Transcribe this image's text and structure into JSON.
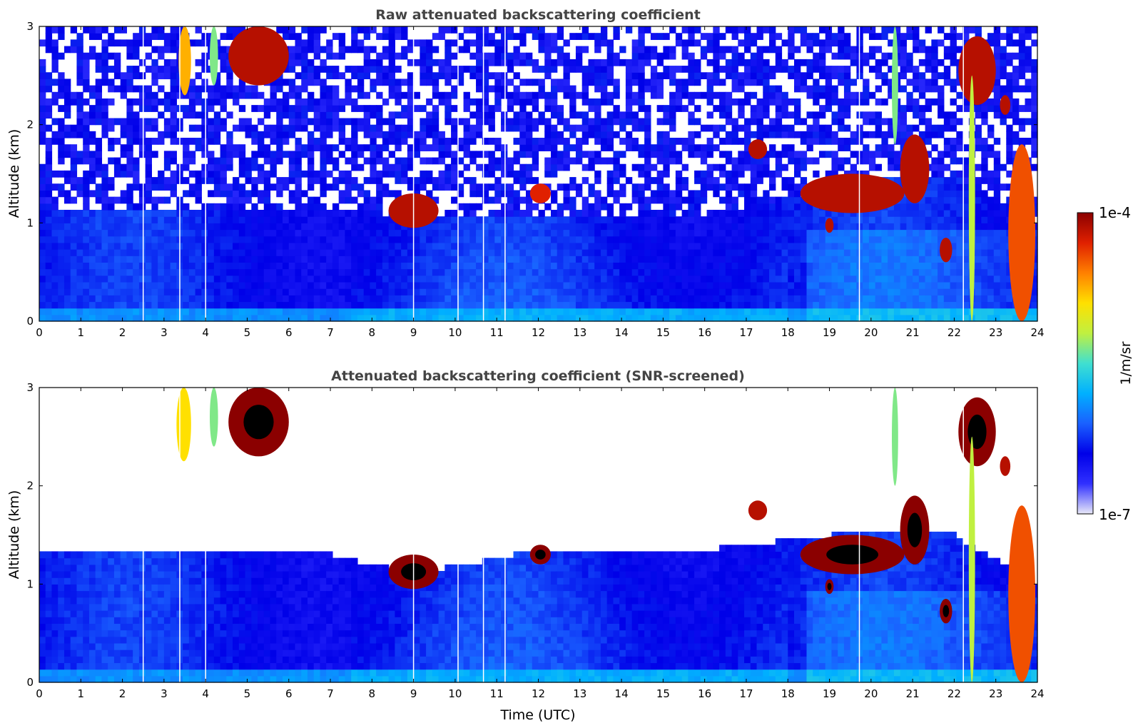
{
  "colors": {
    "bg_plot": "#ffffff",
    "frame": "#000000",
    "title_text": "#444444",
    "colormap_stops": [
      "#e8e8f8",
      "#3030ff",
      "#0000e8",
      "#1a60ff",
      "#00b0ff",
      "#40e0d0",
      "#c0f040",
      "#ffe000",
      "#ff8000",
      "#e02000",
      "#8b0000"
    ],
    "screened_cloud_core": "#000000"
  },
  "colorbar": {
    "max_label": "1e-4",
    "min_label": "1e-7",
    "unit_label": "1/m/sr",
    "scale": "log"
  },
  "chart_data": [
    {
      "type": "heatmap",
      "title": "Raw attenuated backscattering coefficient",
      "xlabel": "",
      "ylabel": "Altitude (km)",
      "xlim": [
        0,
        24
      ],
      "ylim": [
        0,
        3
      ],
      "xticks": [
        "0",
        "1",
        "2",
        "3",
        "4",
        "5",
        "6",
        "7",
        "8",
        "9",
        "10",
        "11",
        "12",
        "13",
        "14",
        "15",
        "16",
        "17",
        "18",
        "19",
        "20",
        "21",
        "22",
        "23",
        "24"
      ],
      "yticks": [
        "0",
        "1",
        "2",
        "3"
      ],
      "grid": false,
      "noise_above_boundary_layer": true,
      "boundary_layer_top_km": [
        [
          0,
          1.15
        ],
        [
          4,
          1.15
        ],
        [
          8,
          1.1
        ],
        [
          12,
          1.05
        ],
        [
          16,
          1.1
        ],
        [
          18,
          1.25
        ],
        [
          20,
          1.45
        ],
        [
          22,
          1.5
        ],
        [
          24,
          1.0
        ]
      ],
      "data_gaps_utc": [
        2.5,
        3.38,
        4.0,
        9.0,
        10.07,
        10.68,
        11.2,
        19.72,
        22.22
      ],
      "cloud_features": [
        {
          "t0": 3.35,
          "t1": 3.65,
          "z0": 2.3,
          "z1": 3.0,
          "intensity": 0.75
        },
        {
          "t0": 4.55,
          "t1": 6.0,
          "z0": 2.4,
          "z1": 3.0,
          "intensity": 0.95
        },
        {
          "t0": 4.1,
          "t1": 4.3,
          "z0": 2.4,
          "z1": 3.0,
          "intensity": 0.55
        },
        {
          "t0": 8.4,
          "t1": 9.6,
          "z0": 0.95,
          "z1": 1.3,
          "intensity": 0.95
        },
        {
          "t0": 11.8,
          "t1": 12.3,
          "z0": 1.2,
          "z1": 1.4,
          "intensity": 0.9
        },
        {
          "t0": 17.05,
          "t1": 17.5,
          "z0": 1.65,
          "z1": 1.85,
          "intensity": 0.95
        },
        {
          "t0": 18.3,
          "t1": 20.8,
          "z0": 1.1,
          "z1": 1.5,
          "intensity": 0.95
        },
        {
          "t0": 18.9,
          "t1": 19.1,
          "z0": 0.9,
          "z1": 1.05,
          "intensity": 0.95
        },
        {
          "t0": 20.7,
          "t1": 21.4,
          "z0": 1.2,
          "z1": 1.9,
          "intensity": 0.95
        },
        {
          "t0": 21.65,
          "t1": 21.95,
          "z0": 0.6,
          "z1": 0.85,
          "intensity": 0.95
        },
        {
          "t0": 22.1,
          "t1": 23.0,
          "z0": 2.2,
          "z1": 2.9,
          "intensity": 0.95
        },
        {
          "t0": 23.1,
          "t1": 23.35,
          "z0": 2.1,
          "z1": 2.3,
          "intensity": 0.95
        },
        {
          "t0": 23.3,
          "t1": 23.95,
          "z0": 0.0,
          "z1": 1.8,
          "intensity": 0.85
        },
        {
          "t0": 20.5,
          "t1": 20.65,
          "z0": 1.8,
          "z1": 3.0,
          "intensity": 0.55
        },
        {
          "t0": 22.35,
          "t1": 22.5,
          "z0": 0.0,
          "z1": 2.5,
          "intensity": 0.6
        }
      ]
    },
    {
      "type": "heatmap",
      "title": "Attenuated backscattering coefficient (SNR-screened)",
      "xlabel": "Time (UTC)",
      "ylabel": "Altitude (km)",
      "xlim": [
        0,
        24
      ],
      "ylim": [
        0,
        3
      ],
      "xticks": [
        "0",
        "1",
        "2",
        "3",
        "4",
        "5",
        "6",
        "7",
        "8",
        "9",
        "10",
        "11",
        "12",
        "13",
        "14",
        "15",
        "16",
        "17",
        "18",
        "19",
        "20",
        "21",
        "22",
        "23",
        "24"
      ],
      "yticks": [
        "0",
        "1",
        "2",
        "3"
      ],
      "grid": false,
      "noise_above_boundary_layer": false,
      "boundary_layer_top_km": [
        [
          0,
          1.3
        ],
        [
          4,
          1.35
        ],
        [
          7,
          1.3
        ],
        [
          9,
          1.1
        ],
        [
          12,
          1.35
        ],
        [
          16,
          1.35
        ],
        [
          18,
          1.45
        ],
        [
          20,
          1.55
        ],
        [
          22,
          1.5
        ],
        [
          24,
          1.0
        ]
      ],
      "data_gaps_utc": [
        2.5,
        3.38,
        4.0,
        9.0,
        10.07,
        10.68,
        11.2,
        19.72,
        22.22
      ],
      "cloud_features": [
        {
          "t0": 3.3,
          "t1": 3.65,
          "z0": 2.25,
          "z1": 3.0,
          "intensity": 0.7
        },
        {
          "t0": 4.55,
          "t1": 6.0,
          "z0": 2.3,
          "z1": 3.0,
          "intensity": 1.0
        },
        {
          "t0": 4.1,
          "t1": 4.3,
          "z0": 2.4,
          "z1": 3.0,
          "intensity": 0.55
        },
        {
          "t0": 8.4,
          "t1": 9.6,
          "z0": 0.95,
          "z1": 1.3,
          "intensity": 1.0
        },
        {
          "t0": 11.8,
          "t1": 12.3,
          "z0": 1.2,
          "z1": 1.4,
          "intensity": 1.0
        },
        {
          "t0": 17.05,
          "t1": 17.5,
          "z0": 1.65,
          "z1": 1.85,
          "intensity": 0.95
        },
        {
          "t0": 18.3,
          "t1": 20.8,
          "z0": 1.1,
          "z1": 1.5,
          "intensity": 1.0
        },
        {
          "t0": 18.9,
          "t1": 19.1,
          "z0": 0.9,
          "z1": 1.05,
          "intensity": 1.0
        },
        {
          "t0": 20.7,
          "t1": 21.4,
          "z0": 1.2,
          "z1": 1.9,
          "intensity": 1.0
        },
        {
          "t0": 21.65,
          "t1": 21.95,
          "z0": 0.6,
          "z1": 0.85,
          "intensity": 1.0
        },
        {
          "t0": 22.1,
          "t1": 23.0,
          "z0": 2.2,
          "z1": 2.9,
          "intensity": 1.0
        },
        {
          "t0": 23.1,
          "t1": 23.35,
          "z0": 2.1,
          "z1": 2.3,
          "intensity": 0.95
        },
        {
          "t0": 23.3,
          "t1": 23.95,
          "z0": 0.0,
          "z1": 1.8,
          "intensity": 0.85
        },
        {
          "t0": 20.5,
          "t1": 20.65,
          "z0": 2.0,
          "z1": 3.0,
          "intensity": 0.55
        },
        {
          "t0": 22.35,
          "t1": 22.5,
          "z0": 0.0,
          "z1": 2.5,
          "intensity": 0.6
        }
      ]
    }
  ]
}
